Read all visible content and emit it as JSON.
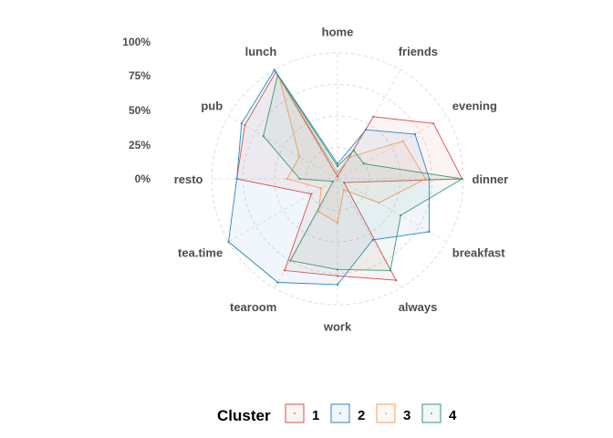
{
  "chart_data": {
    "type": "radar",
    "axes": [
      "dinner",
      "breakfast",
      "always",
      "work",
      "tearoom",
      "tea.time",
      "resto",
      "pub",
      "lunch",
      "home",
      "friends",
      "evening"
    ],
    "percent_ticks": [
      "0%",
      "25%",
      "50%",
      "75%",
      "100%"
    ],
    "rlim": [
      0,
      1
    ],
    "grid": true,
    "legend": {
      "title": "Cluster",
      "position": "bottom"
    },
    "series": [
      {
        "name": "1",
        "color": "#d9534f",
        "values": [
          0.99,
          0.06,
          0.93,
          0.77,
          0.84,
          0.24,
          0.8,
          0.85,
          0.98,
          0.02,
          0.57,
          0.88
        ]
      },
      {
        "name": "2",
        "color": "#2e86c1",
        "values": [
          0.73,
          0.84,
          0.56,
          0.84,
          0.95,
          1.0,
          0.8,
          0.88,
          1.0,
          0.12,
          0.45,
          0.71
        ]
      },
      {
        "name": "3",
        "color": "#f0a060",
        "values": [
          0.7,
          0.38,
          0.1,
          0.35,
          0.3,
          0.15,
          0.4,
          0.35,
          0.92,
          0.05,
          0.2,
          0.6
        ]
      },
      {
        "name": "4",
        "color": "#3a9a6c",
        "values": [
          0.99,
          0.58,
          0.84,
          0.72,
          0.75,
          0.04,
          0.3,
          0.68,
          0.95,
          0.1,
          0.26,
          0.24
        ]
      }
    ]
  }
}
